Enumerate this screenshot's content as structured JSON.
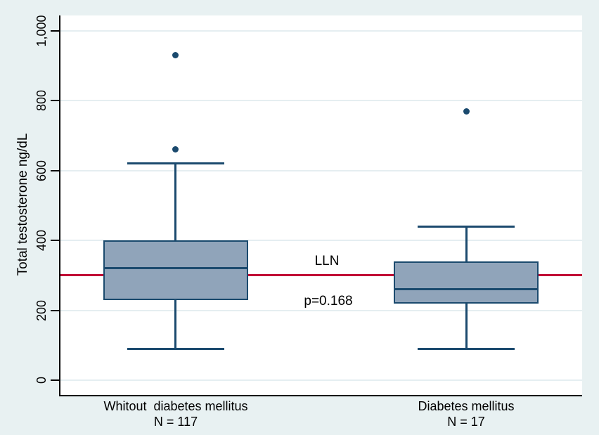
{
  "chart_data": {
    "type": "boxplot",
    "title": "",
    "ylabel": "Total testosterone ng/dL",
    "xlabel": "",
    "yticks": [
      0,
      200,
      400,
      600,
      800,
      1000
    ],
    "ytick_labels": [
      "0",
      "200",
      "400",
      "600",
      "800",
      "1,000"
    ],
    "ylim": [
      -40,
      1045
    ],
    "grid": true,
    "categories": [
      "Whitout  diabetes mellitus",
      "Diabetes mellitus"
    ],
    "groups": [
      {
        "label": "Whitout  diabetes mellitus",
        "sublabel": "N = 117",
        "n": 117,
        "whisker_low": 90,
        "q1": 230,
        "median": 320,
        "q3": 400,
        "whisker_high": 620,
        "outliers": [
          660,
          930
        ]
      },
      {
        "label": "Diabetes mellitus",
        "sublabel": "N = 17",
        "n": 17,
        "whisker_low": 90,
        "q1": 220,
        "median": 260,
        "q3": 340,
        "whisker_high": 440,
        "outliers": [
          770
        ]
      }
    ],
    "reference_line": {
      "value": 300,
      "label": "LLN"
    },
    "annotation": {
      "text": "p=0.168"
    }
  },
  "colors": {
    "background": "#E8F1F2",
    "plot_bg": "#FFFFFF",
    "grid": "#E5EEF1",
    "box_fill": "#90A4BA",
    "box_border": "#1B4A6E",
    "outlier": "#1B4A6E",
    "reference_line": "#C10534",
    "axis": "#000000",
    "text": "#000000"
  }
}
